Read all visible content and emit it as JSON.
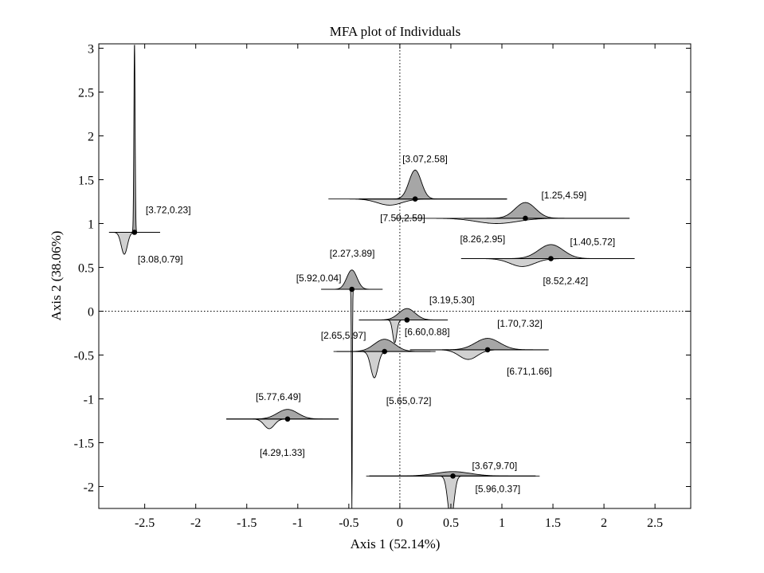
{
  "chart_data": {
    "type": "scatter",
    "title": "MFA plot of Individuals",
    "xlabel": "Axis 1 (52.14%)",
    "ylabel": "Axis 2 (38.06%)",
    "xlim": [
      -2.95,
      2.85
    ],
    "ylim": [
      -2.25,
      3.05
    ],
    "xticks": [
      -2.5,
      -2,
      -1.5,
      -1,
      -0.5,
      0,
      0.5,
      1,
      1.5,
      2,
      2.5
    ],
    "xtick_labels": [
      "-2.5",
      "-2",
      "-1.5",
      "-1",
      "-0.5",
      "0",
      "0.5",
      "1",
      "1.5",
      "2",
      "2.5"
    ],
    "yticks": [
      -2,
      -1.5,
      -1,
      -0.5,
      0,
      0.5,
      1,
      1.5,
      2,
      2.5,
      3
    ],
    "ytick_labels": [
      "-2",
      "-1.5",
      "-1",
      "-0.5",
      "0",
      "0.5",
      "1",
      "1.5",
      "2",
      "2.5",
      "3"
    ],
    "reference_lines": {
      "x": 0,
      "y": 0,
      "style": "dotted"
    },
    "grid": false,
    "marker_color": "#000000",
    "upper_fill": "#a6a6a6",
    "lower_fill": "#d0d0d0",
    "points": [
      {
        "x": -2.6,
        "y": 0.9,
        "label_upper": "[3.72,0.23]",
        "label_lower": "[3.08,0.79]",
        "h_range": [
          -2.7,
          -2.35
        ],
        "upper_sd": 0.006,
        "upper_height": 2.15,
        "lower_sd": 0.03,
        "lower_height": 0.25,
        "lower_mean": -2.7
      },
      {
        "x": -0.47,
        "y": 0.25,
        "label_upper": "[2.27,3.89]",
        "label_lower": "[5.92,0.04]",
        "h_range": [
          -0.77,
          -0.17
        ],
        "upper_sd": 0.05,
        "upper_height": 0.22,
        "lower_sd": 0.004,
        "lower_height": 2.5,
        "lower_mean": -0.47
      },
      {
        "x": 0.15,
        "y": 1.28,
        "label_upper": "[3.07,2.58]",
        "label_lower": "[7.50,2.59]",
        "h_range": [
          -0.4,
          1.05
        ],
        "upper_sd": 0.06,
        "upper_height": 0.33,
        "lower_sd": 0.12,
        "lower_height": 0.07,
        "lower_mean": -0.1
      },
      {
        "x": 1.23,
        "y": 1.06,
        "label_upper": "[1.25,4.59]",
        "label_lower": "[8.26,2.95]",
        "h_range": [
          0.63,
          2.25
        ],
        "upper_sd": 0.1,
        "upper_height": 0.18,
        "lower_sd": 0.2,
        "lower_height": 0.06,
        "lower_mean": 0.95
      },
      {
        "x": 1.48,
        "y": 0.6,
        "label_upper": "[1.40,5.72]",
        "label_lower": "[8.52,2.42]",
        "h_range": [
          0.98,
          2.3
        ],
        "upper_sd": 0.12,
        "upper_height": 0.16,
        "lower_sd": 0.12,
        "lower_height": 0.09,
        "lower_mean": 1.2
      },
      {
        "x": 0.07,
        "y": -0.1,
        "label_upper": "[3.19,5.30]",
        "label_lower": "[6.60,0.88]",
        "h_range": [
          -0.4,
          0.27
        ],
        "upper_sd": 0.08,
        "upper_height": 0.13,
        "lower_sd": 0.02,
        "lower_height": 0.26,
        "lower_mean": -0.05
      },
      {
        "x": 0.86,
        "y": -0.44,
        "label_upper": "[1.70,7.32]",
        "label_lower": "[6.71,1.66]",
        "h_range": [
          0.1,
          1.45
        ],
        "upper_sd": 0.12,
        "upper_height": 0.13,
        "lower_sd": 0.09,
        "lower_height": 0.11,
        "lower_mean": 0.67
      },
      {
        "x": -0.15,
        "y": -0.46,
        "label_upper": "[2.65,5.97]",
        "label_lower": "[5.65,0.72]",
        "h_range": [
          -0.62,
          0.3
        ],
        "upper_sd": 0.1,
        "upper_height": 0.14,
        "lower_sd": 0.035,
        "lower_height": 0.3,
        "lower_mean": -0.25
      },
      {
        "x": -1.1,
        "y": -1.23,
        "label_upper": "[5.77,6.49]",
        "label_lower": "[4.29,1.33]",
        "h_range": [
          -1.7,
          -0.6
        ],
        "upper_sd": 0.1,
        "upper_height": 0.11,
        "lower_sd": 0.05,
        "lower_height": 0.11,
        "lower_mean": -1.28
      },
      {
        "x": 0.52,
        "y": -1.88,
        "label_upper": "[3.67,9.70]",
        "label_lower": "[5.96,0.37]",
        "h_range": [
          -0.3,
          1.33
        ],
        "upper_sd": 0.17,
        "upper_height": 0.05,
        "lower_sd": 0.03,
        "lower_height": 0.5,
        "lower_mean": 0.5
      }
    ]
  }
}
